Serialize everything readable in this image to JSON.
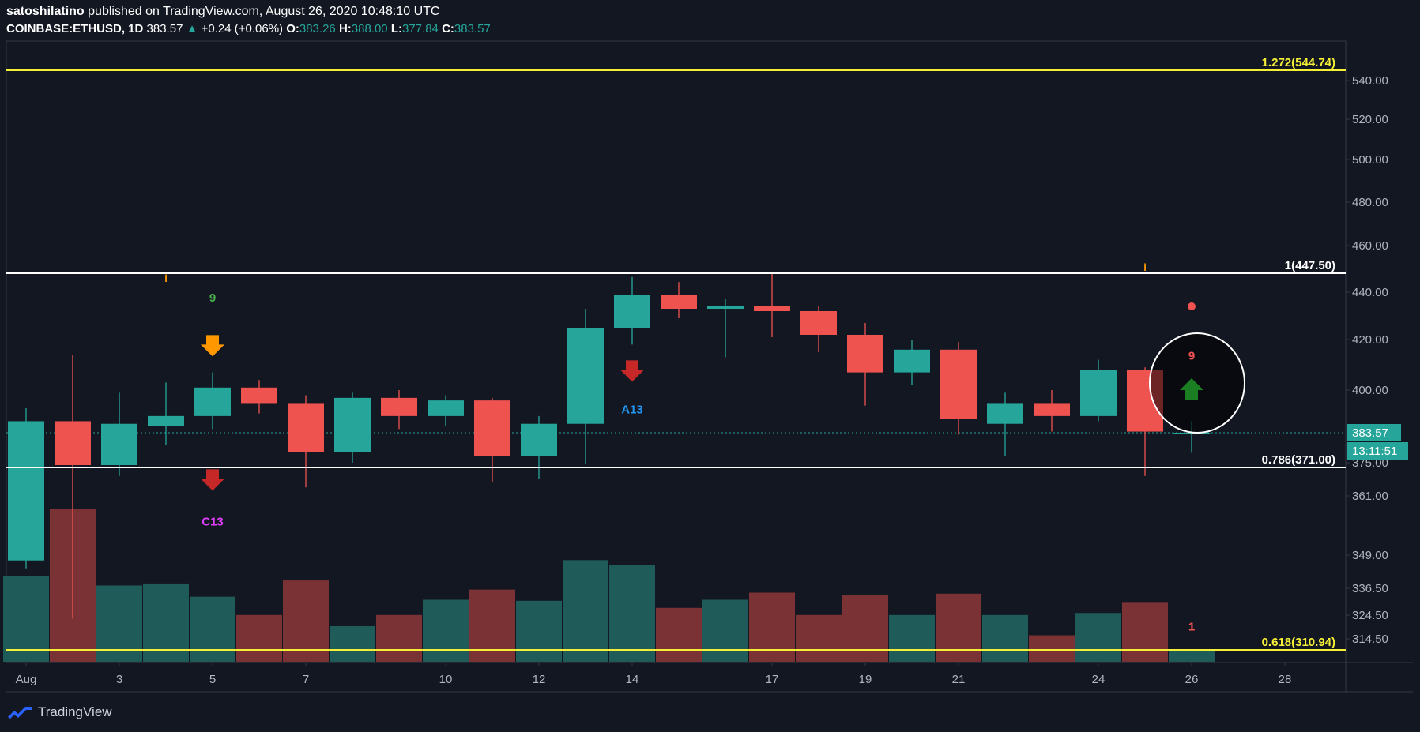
{
  "header": {
    "author": "satoshilatino",
    "published_text": "published on TradingView.com, August 26, 2020 10:48:10 UTC",
    "symbol": "COINBASE:ETHUSD, 1D",
    "last": "383.57",
    "change": "+0.24 (+0.06%)",
    "o_label": "O:",
    "o_value": "383.26",
    "h_label": "H:",
    "h_value": "388.00",
    "l_label": "L:",
    "l_value": "377.84",
    "c_label": "C:",
    "c_value": "383.57"
  },
  "footer": {
    "brand": "TradingView"
  },
  "colors": {
    "bg": "#131722",
    "up": "#26a69a",
    "down": "#ef5350",
    "vol_up": "#1e5b59",
    "vol_down": "#7a3234",
    "fib_yellow": "#f5f035",
    "fib_white": "#ffffff"
  },
  "chart_data": {
    "type": "candlestick",
    "price_axis": {
      "ticks": [
        "540.00",
        "520.00",
        "500.00",
        "480.00",
        "460.00",
        "440.00",
        "420.00",
        "400.00",
        "375.00",
        "361.00",
        "349.00",
        "336.50",
        "324.50",
        "314.50"
      ],
      "tick_values": [
        540,
        520,
        500,
        480,
        460,
        440,
        420,
        400,
        375,
        361,
        349,
        336.5,
        324.5,
        314.5
      ],
      "last_price_label": "383.57",
      "countdown_label": "13:11:51"
    },
    "x_axis": {
      "ticks": [
        {
          "label": "Aug",
          "index": 0
        },
        {
          "label": "3",
          "index": 2
        },
        {
          "label": "5",
          "index": 4
        },
        {
          "label": "7",
          "index": 6
        },
        {
          "label": "10",
          "index": 9
        },
        {
          "label": "12",
          "index": 11
        },
        {
          "label": "14",
          "index": 13
        },
        {
          "label": "17",
          "index": 16
        },
        {
          "label": "19",
          "index": 18
        },
        {
          "label": "21",
          "index": 20
        },
        {
          "label": "24",
          "index": 23
        },
        {
          "label": "26",
          "index": 25
        },
        {
          "label": "28",
          "index": 27
        }
      ]
    },
    "candles": [
      {
        "o": 347,
        "h": 393,
        "l": 344,
        "c": 388
      },
      {
        "o": 388,
        "h": 414,
        "l": 323,
        "c": 373
      },
      {
        "o": 373,
        "h": 399,
        "l": 368,
        "c": 387
      },
      {
        "o": 386,
        "h": 403,
        "l": 380,
        "c": 390
      },
      {
        "o": 390,
        "h": 407,
        "l": 385,
        "c": 401
      },
      {
        "o": 401,
        "h": 404,
        "l": 391,
        "c": 395
      },
      {
        "o": 395,
        "h": 398,
        "l": 364,
        "c": 378
      },
      {
        "o": 378,
        "h": 399,
        "l": 375,
        "c": 397
      },
      {
        "o": 397,
        "h": 400,
        "l": 385,
        "c": 390
      },
      {
        "o": 390,
        "h": 398,
        "l": 386,
        "c": 396
      },
      {
        "o": 396,
        "h": 397,
        "l": 366,
        "c": 377
      },
      {
        "o": 377,
        "h": 390,
        "l": 367,
        "c": 387
      },
      {
        "o": 387,
        "h": 433,
        "l": 374,
        "c": 425
      },
      {
        "o": 425,
        "h": 446,
        "l": 418,
        "c": 439
      },
      {
        "o": 439,
        "h": 444,
        "l": 429,
        "c": 433
      },
      {
        "o": 433,
        "h": 437,
        "l": 413,
        "c": 434
      },
      {
        "o": 434,
        "h": 448,
        "l": 421,
        "c": 432
      },
      {
        "o": 432,
        "h": 434,
        "l": 415,
        "c": 422
      },
      {
        "o": 422,
        "h": 427,
        "l": 394,
        "c": 407
      },
      {
        "o": 407,
        "h": 420,
        "l": 402,
        "c": 416
      },
      {
        "o": 416,
        "h": 419,
        "l": 383,
        "c": 389
      },
      {
        "o": 387,
        "h": 399,
        "l": 377,
        "c": 395
      },
      {
        "o": 395,
        "h": 400,
        "l": 384,
        "c": 390
      },
      {
        "o": 390,
        "h": 412,
        "l": 388,
        "c": 408
      },
      {
        "o": 408,
        "h": 409,
        "l": 368,
        "c": 384
      },
      {
        "o": 383.26,
        "h": 388.0,
        "l": 377.84,
        "c": 383.57
      }
    ],
    "volumes": [
      0.84,
      1.5,
      0.75,
      0.77,
      0.64,
      0.46,
      0.8,
      0.35,
      0.46,
      0.61,
      0.71,
      0.6,
      1.0,
      0.95,
      0.53,
      0.61,
      0.68,
      0.46,
      0.66,
      0.46,
      0.67,
      0.46,
      0.26,
      0.48,
      0.58,
      0.12
    ],
    "fib_levels": [
      {
        "label": "1.272(544.74)",
        "value": 544.74,
        "color": "#f5f035"
      },
      {
        "label": "1(447.50)",
        "value": 447.5,
        "color": "#ffffff"
      },
      {
        "label": "0.786(371.00)",
        "value": 371.0,
        "color": "#ffffff"
      },
      {
        "label": "0.618(310.94)",
        "value": 310.94,
        "color": "#f5f035"
      }
    ],
    "annotations": [
      {
        "type": "text",
        "text": "9",
        "index": 4,
        "price": 436,
        "color": "#4caf50"
      },
      {
        "type": "arrow-down",
        "index": 4,
        "price": 418,
        "color": "#ff9800"
      },
      {
        "type": "arrow-down",
        "index": 4,
        "price": 367,
        "color": "#c62828"
      },
      {
        "type": "text",
        "text": "C13",
        "index": 4,
        "price": 355,
        "color": "#e040fb"
      },
      {
        "type": "arrow-down",
        "index": 13,
        "price": 408,
        "color": "#c62828"
      },
      {
        "type": "text",
        "text": "A13",
        "index": 13,
        "price": 391,
        "color": "#2196f3"
      },
      {
        "type": "text",
        "text": "i",
        "index": 3,
        "price": 444,
        "color": "#ff9800"
      },
      {
        "type": "text",
        "text": "i",
        "index": 24,
        "price": 448.5,
        "color": "#ff9800"
      },
      {
        "type": "dot",
        "index": 25,
        "price": 434,
        "color": "#ef5350"
      },
      {
        "type": "text",
        "text": "9",
        "index": 25,
        "price": 412,
        "color": "#ef5350"
      },
      {
        "type": "arrow-up",
        "index": 25,
        "price": 400,
        "color": "#1b7e23"
      },
      {
        "type": "text",
        "text": "1",
        "index": 25,
        "price": 318,
        "color": "#ef5350"
      }
    ]
  }
}
